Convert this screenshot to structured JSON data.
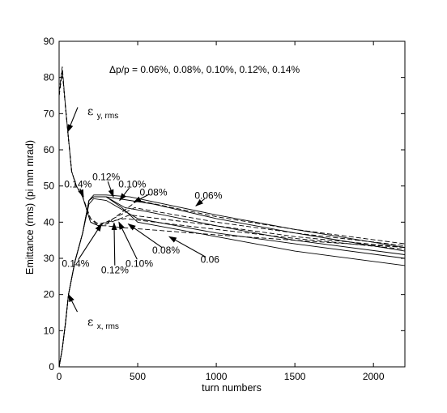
{
  "chart_data": {
    "type": "line",
    "title": "",
    "xlabel": "turn numbers",
    "ylabel": "Emittance (rms) (pi mm mrad)",
    "xlim": [
      0,
      2200
    ],
    "ylim": [
      0,
      90
    ],
    "xticks": [
      0,
      500,
      1000,
      1500,
      2000
    ],
    "yticks": [
      0,
      10,
      20,
      30,
      40,
      50,
      60,
      70,
      80,
      90
    ],
    "grid": false,
    "legend": "none",
    "header_annotation": "Δp/p = 0.06%, 0.08%, 0.10%, 0.12%, 0.14%",
    "label_ey": {
      "symbol": "ε",
      "sub": "y, rms"
    },
    "label_ex": {
      "symbol": "ε",
      "sub": "x, rms"
    },
    "series": [
      {
        "style": "dashed",
        "x": [
          0,
          20,
          40,
          60,
          80,
          110,
          150,
          200,
          250,
          300,
          400,
          1000,
          1500,
          2200
        ],
        "y": [
          76,
          83,
          72,
          63,
          54,
          50,
          47,
          40,
          39,
          39,
          38.5,
          36.5,
          35,
          33
        ]
      },
      {
        "style": "dashed",
        "x": [
          0,
          20,
          40,
          60,
          80,
          110,
          150,
          200,
          250,
          300,
          420,
          1000,
          1500,
          2200
        ],
        "y": [
          75,
          82,
          72,
          63,
          54,
          50,
          47,
          41,
          39.5,
          40,
          41,
          38,
          35.5,
          32.5
        ]
      },
      {
        "style": "dashed",
        "x": [
          0,
          20,
          40,
          60,
          80,
          110,
          150,
          200,
          250,
          300,
          450,
          1000,
          1500,
          2200
        ],
        "y": [
          75,
          82,
          72,
          63,
          54,
          50,
          47,
          40,
          39,
          39.5,
          42,
          39,
          36,
          33
        ]
      },
      {
        "style": "dashed",
        "x": [
          0,
          20,
          40,
          60,
          80,
          110,
          150,
          200,
          250,
          300,
          480,
          1000,
          1500,
          2200
        ],
        "y": [
          75,
          82,
          72,
          63,
          54,
          50,
          47,
          41,
          39,
          40,
          44,
          40,
          37,
          33.5
        ]
      },
      {
        "style": "dashed",
        "x": [
          0,
          20,
          40,
          60,
          80,
          110,
          150,
          200,
          250,
          300,
          500,
          1000,
          1500,
          2200
        ],
        "y": [
          75,
          82,
          72,
          63,
          54,
          50,
          47,
          40,
          39,
          39.5,
          46,
          41.5,
          38,
          34
        ]
      },
      {
        "style": "solid",
        "x": [
          0,
          20,
          40,
          60,
          100,
          150,
          190,
          220,
          300,
          500,
          1000,
          1500,
          2200
        ],
        "y": [
          0,
          5,
          12,
          20,
          29,
          37,
          45,
          46.5,
          46,
          41,
          37,
          34,
          30
        ]
      },
      {
        "style": "solid",
        "x": [
          0,
          20,
          40,
          60,
          100,
          150,
          190,
          220,
          300,
          400,
          500,
          1000,
          1500,
          2200
        ],
        "y": [
          0,
          5,
          12,
          20,
          29,
          37,
          46,
          47,
          47,
          44,
          40,
          36,
          32,
          28
        ]
      },
      {
        "style": "solid",
        "x": [
          0,
          20,
          40,
          60,
          100,
          150,
          190,
          220,
          300,
          420,
          550,
          1000,
          1500,
          2200
        ],
        "y": [
          0,
          5,
          12,
          20,
          29,
          37,
          46,
          47,
          47,
          44,
          43,
          39,
          35,
          31
        ]
      },
      {
        "style": "solid",
        "x": [
          0,
          20,
          40,
          60,
          100,
          150,
          190,
          220,
          300,
          450,
          600,
          1000,
          1500,
          2200
        ],
        "y": [
          0,
          5,
          12,
          20,
          29,
          37,
          46,
          47,
          47,
          46,
          45,
          41,
          37,
          32
        ]
      },
      {
        "style": "solid",
        "x": [
          0,
          20,
          40,
          60,
          100,
          150,
          190,
          220,
          300,
          450,
          1000,
          1500,
          2200
        ],
        "y": [
          0,
          5,
          12,
          20,
          29,
          37,
          46,
          47.5,
          47.5,
          47,
          42,
          38,
          33
        ]
      }
    ],
    "annotations": [
      {
        "text": "0.14%",
        "x": 120,
        "y": 50.5,
        "tx": 155,
        "ty": 47
      },
      {
        "text": "0.12%",
        "x": 300,
        "y": 52.5,
        "tx": 345,
        "ty": 47
      },
      {
        "text": "0.10%",
        "x": 465,
        "y": 50.5,
        "tx": 385,
        "ty": 46
      },
      {
        "text": "0.08%",
        "x": 600,
        "y": 48.3,
        "tx": 475,
        "ty": 45.5
      },
      {
        "text": "0.06%",
        "x": 950,
        "y": 47.3,
        "tx": 870,
        "ty": 44.5
      },
      {
        "text": "0.14%",
        "x": 105,
        "y": 28.5,
        "tx": 270,
        "ty": 39.5
      },
      {
        "text": "0.12%",
        "x": 355,
        "y": 26.7,
        "tx": 350,
        "ty": 39.8
      },
      {
        "text": "0.10%",
        "x": 510,
        "y": 28.5,
        "tx": 380,
        "ty": 40
      },
      {
        "text": "0.08%",
        "x": 680,
        "y": 32.2,
        "tx": 440,
        "ty": 39.5
      },
      {
        "text": "0.06",
        "x": 960,
        "y": 29.7,
        "tx": 700,
        "ty": 36
      },
      {
        "text": "",
        "x": 130,
        "y": 73,
        "tx": 55,
        "ty": 65
      },
      {
        "text": "",
        "x": 130,
        "y": 14,
        "tx": 60,
        "ty": 20
      }
    ]
  }
}
